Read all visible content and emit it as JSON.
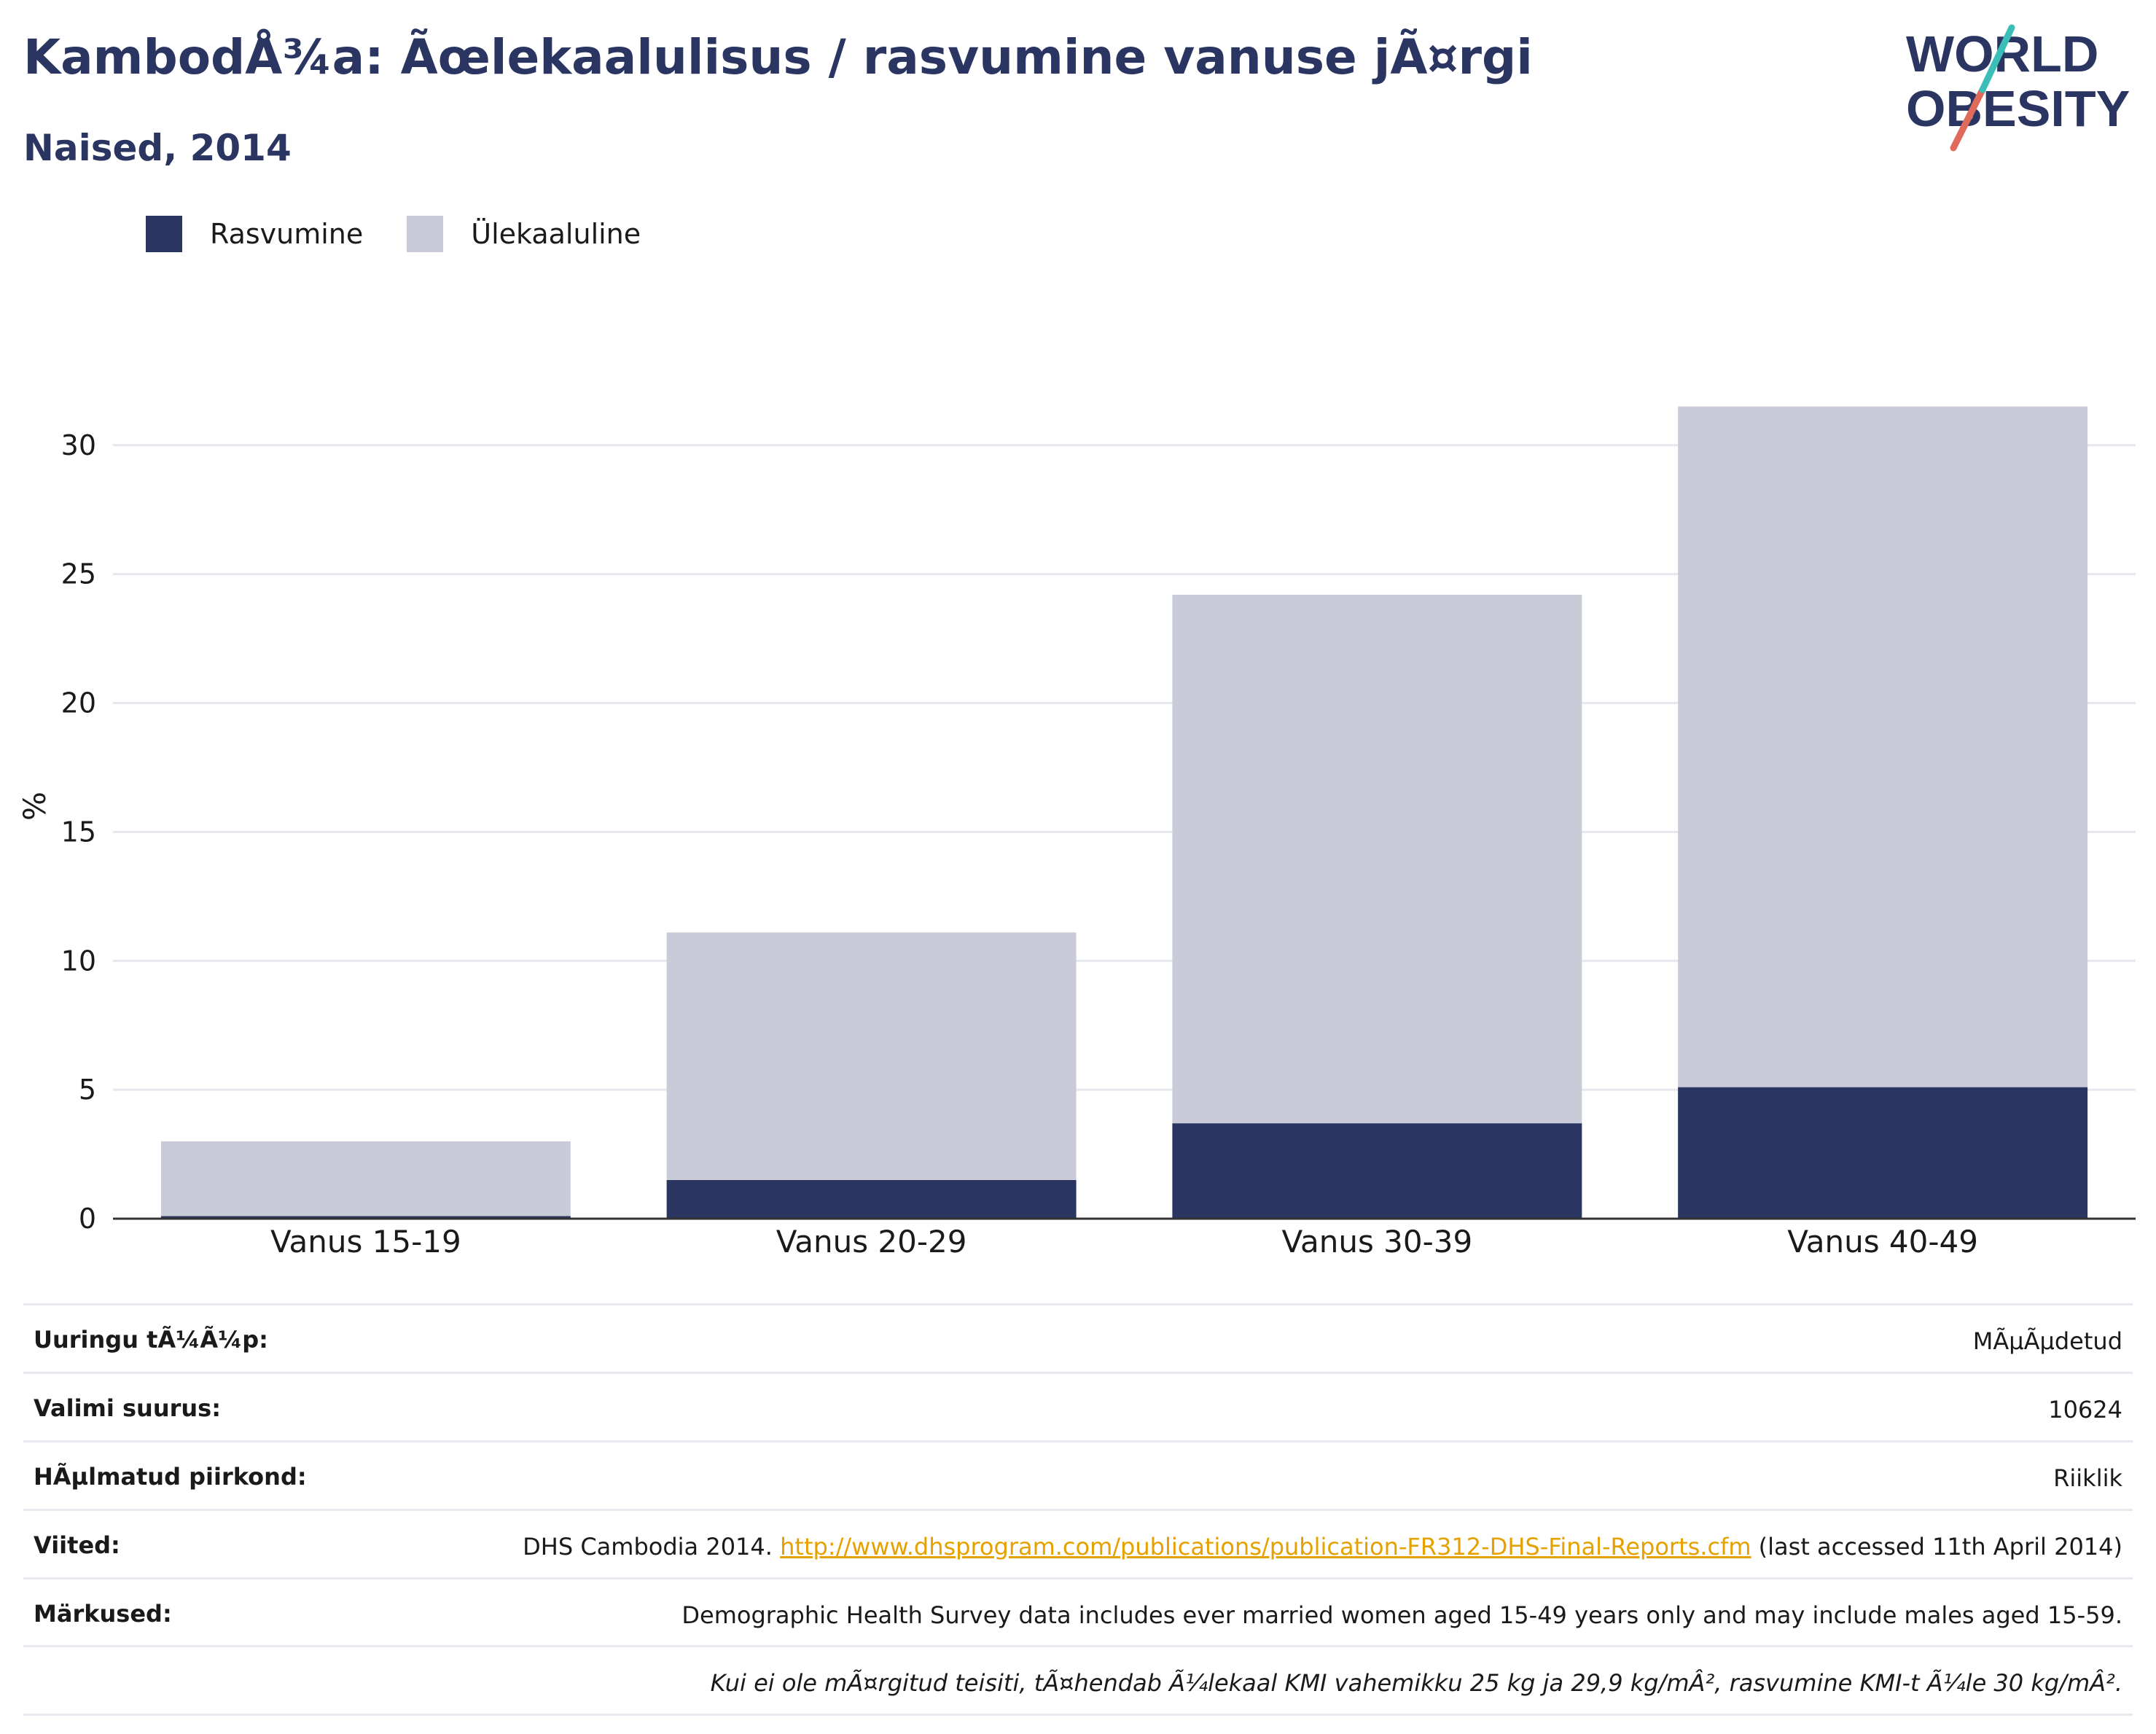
{
  "header": {
    "title": "KambodÅ¾a: Ãœlekaalulisus / rasvumine vanuse jÃ¤rgi",
    "subtitle": "Naised, 2014"
  },
  "logo": {
    "line1": "WORLD",
    "line2": "OBESITY"
  },
  "colors": {
    "obesity": "#2a3562",
    "overweight": "#c9ccd8",
    "title": "#2a3562",
    "link": "#e5a100"
  },
  "legend": [
    {
      "label": "Rasvumine",
      "color": "#2a3562"
    },
    {
      "label": "Ülekaaluline",
      "color": "#c9ccd8"
    }
  ],
  "chart_data": {
    "type": "bar",
    "stacked": true,
    "categories": [
      "Vanus 15-19",
      "Vanus 20-29",
      "Vanus 30-39",
      "Vanus 40-49"
    ],
    "series": [
      {
        "name": "Rasvumine",
        "values": [
          0.1,
          1.5,
          3.7,
          5.1
        ]
      },
      {
        "name": "Ülekaaluline",
        "values": [
          2.9,
          9.6,
          20.5,
          26.4
        ]
      }
    ],
    "ylabel": "%",
    "ylim": [
      0,
      32
    ],
    "yticks": [
      "0",
      "5",
      "10",
      "15",
      "20",
      "25",
      "30"
    ],
    "grid": true,
    "legend_position": "top-left"
  },
  "info": {
    "survey_type_label": "Uuringu tÃ¼Ã¼p:",
    "survey_type_value": "MÃµÃµdetud",
    "sample_size_label": "Valimi suurus:",
    "sample_size_value": "10624",
    "region_label": "HÃµlmatud piirkond:",
    "region_value": "Riiklik",
    "references_label": "Viited:",
    "references_prefix": "DHS Cambodia 2014.",
    "references_link": "http://www.dhsprogram.com/publications/publication-FR312-DHS-Final-Reports.cfm",
    "references_suffix": "(last accessed 11th April 2014)",
    "notes_label": "Märkused:",
    "notes_value": "Demographic Health Survey data includes ever married women aged 15-49 years only and may include males aged 15-59.",
    "definition_note": "Kui ei ole mÃ¤rgitud teisiti, tÃ¤hendab Ã¼lekaal KMI vahemikku 25 kg ja 29,9 kg/mÂ², rasvumine KMI-t Ã¼le 30 kg/mÂ²."
  }
}
